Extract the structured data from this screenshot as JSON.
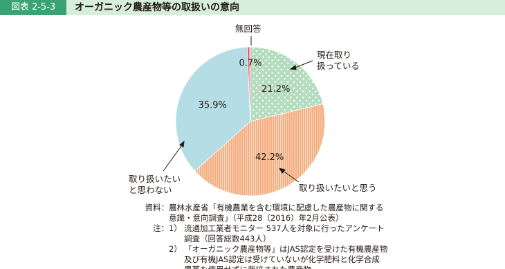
{
  "chart_data": {
    "type": "pie",
    "figure_label": "図表 2-5-3",
    "title": "オーガニック農産物等の取扱いの意向",
    "categories": [
      "現在取り\n扱っている",
      "取り扱いたいと思う",
      "取り扱いたい\nと思わない",
      "無回答"
    ],
    "values": [
      21.2,
      42.2,
      35.9,
      0.7
    ],
    "value_labels": [
      "21.2%",
      "42.2%",
      "35.9%",
      "0.7%"
    ],
    "colors": [
      "#b5dcbf",
      "#f3ae82",
      "#b5dde6",
      "#e8566b"
    ],
    "hatch": [
      "dots",
      "vlines",
      null,
      "vlines"
    ],
    "notes": {
      "source_label": "資料：",
      "source": "農林水産省「有機農業を含む環境に配慮した農産物に関する\n意識・意向調査」（平成28（2016）年2月公表）",
      "note_label": "注：",
      "items": [
        {
          "number": "1）",
          "text": "流通加工業者モニター 537人を対象に行ったアンケート\n調査（回答総数443人）"
        },
        {
          "number": "2）",
          "text": "「オーガニック農産物等」はJAS認定を受けた有機農産物\n及び有機JAS認定は受けていないが化学肥料と化学合成\n農薬を使用せずに栽培された農産物"
        }
      ]
    }
  }
}
